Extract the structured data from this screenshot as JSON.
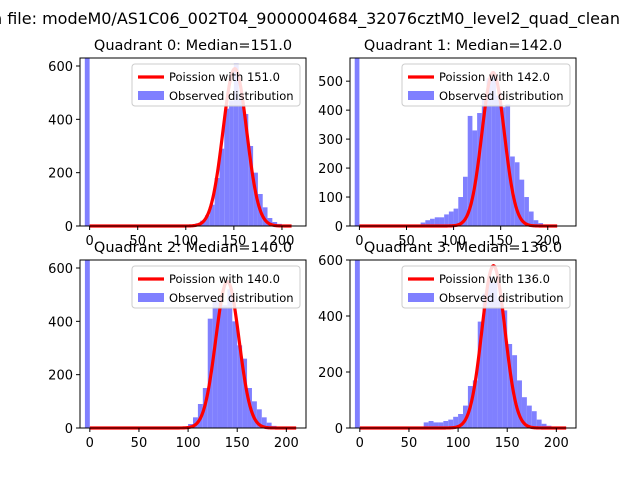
{
  "chart_data": {
    "type": "histogram",
    "suptitle": "n file: modeM0/AS1C06_002T04_9000004684_32076cztM0_level2_quad_clean",
    "bin_width": 5,
    "colors": {
      "hist": "#8080ff",
      "fit": "#ff0000"
    },
    "legend": {
      "placement": "top-right"
    },
    "panels": [
      {
        "title": "Quadrant 0: Median=151.0",
        "median": 151.0,
        "fit_label": "Poission with 151.0",
        "hist_label": "Observed distribution",
        "xlim": [
          -10,
          225
        ],
        "ylim": [
          0,
          630
        ],
        "xticks": [
          0,
          50,
          100,
          150,
          200
        ],
        "yticks": [
          0,
          200,
          400,
          600
        ],
        "fit_peak": 590,
        "fit_sigma": 12.3,
        "hist": {
          "x": [
            -5,
            100,
            110,
            115,
            120,
            125,
            130,
            135,
            140,
            145,
            150,
            155,
            160,
            165,
            170,
            175,
            180,
            185,
            190,
            195,
            200,
            205,
            210
          ],
          "y": [
            630,
            5,
            10,
            20,
            40,
            80,
            180,
            290,
            440,
            470,
            610,
            480,
            420,
            300,
            200,
            120,
            70,
            30,
            15,
            8,
            5,
            3,
            2
          ]
        }
      },
      {
        "title": "Quadrant 1: Median=142.0",
        "median": 142.0,
        "fit_label": "Poission with 142.0",
        "hist_label": "Observed distribution",
        "xlim": [
          -10,
          230
        ],
        "ylim": [
          0,
          580
        ],
        "xticks": [
          0,
          50,
          100,
          150,
          200
        ],
        "yticks": [
          0,
          100,
          200,
          300,
          400,
          500
        ],
        "fit_peak": 530,
        "fit_sigma": 11.9,
        "hist": {
          "x": [
            -5,
            60,
            65,
            70,
            75,
            80,
            85,
            90,
            95,
            100,
            105,
            110,
            115,
            120,
            125,
            130,
            135,
            140,
            145,
            150,
            155,
            160,
            165,
            170,
            175,
            180,
            185,
            190,
            195,
            200
          ],
          "y": [
            580,
            5,
            12,
            20,
            25,
            30,
            30,
            40,
            50,
            60,
            100,
            170,
            380,
            330,
            390,
            440,
            510,
            520,
            450,
            410,
            420,
            240,
            220,
            160,
            100,
            50,
            20,
            10,
            5,
            2
          ]
        }
      },
      {
        "title": "Quadrant 2: Median=140.0",
        "median": 140.0,
        "fit_label": "Poission with 140.0",
        "hist_label": "Observed distribution",
        "xlim": [
          -10,
          220
        ],
        "ylim": [
          0,
          630
        ],
        "xticks": [
          0,
          50,
          100,
          150,
          200
        ],
        "yticks": [
          0,
          200,
          400,
          600
        ],
        "fit_peak": 550,
        "fit_sigma": 11.8,
        "hist": {
          "x": [
            -5,
            90,
            100,
            105,
            110,
            115,
            120,
            125,
            130,
            135,
            140,
            145,
            150,
            155,
            160,
            165,
            170,
            175,
            180,
            185,
            190,
            195
          ],
          "y": [
            630,
            5,
            15,
            40,
            90,
            150,
            410,
            480,
            470,
            460,
            520,
            400,
            310,
            260,
            150,
            100,
            70,
            40,
            20,
            8,
            4,
            2
          ]
        }
      },
      {
        "title": "Quadrant 3: Median=136.0",
        "median": 136.0,
        "fit_label": "Poission with 136.0",
        "hist_label": "Observed distribution",
        "xlim": [
          -10,
          220
        ],
        "ylim": [
          0,
          600
        ],
        "xticks": [
          0,
          50,
          100,
          150,
          200
        ],
        "yticks": [
          0,
          200,
          400,
          600
        ],
        "fit_peak": 580,
        "fit_sigma": 11.7,
        "hist": {
          "x": [
            -5,
            60,
            65,
            70,
            75,
            80,
            85,
            90,
            95,
            100,
            105,
            110,
            115,
            120,
            125,
            130,
            135,
            140,
            145,
            150,
            155,
            160,
            165,
            170,
            175,
            180,
            185,
            190,
            195
          ],
          "y": [
            600,
            5,
            20,
            25,
            20,
            20,
            25,
            30,
            40,
            50,
            80,
            150,
            170,
            380,
            480,
            540,
            520,
            460,
            420,
            300,
            260,
            170,
            110,
            80,
            60,
            30,
            15,
            8,
            3
          ]
        }
      }
    ]
  }
}
